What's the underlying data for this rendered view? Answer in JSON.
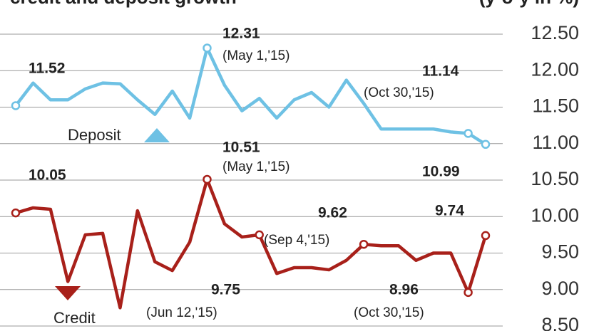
{
  "chart_data": {
    "type": "line",
    "title": "credit and deposit growth",
    "unit": "(y-o-y in %)",
    "categories": [
      null,
      null,
      null,
      null,
      null,
      null,
      null,
      null,
      null,
      null,
      null,
      null,
      null,
      null,
      null,
      null,
      null,
      null,
      null,
      null,
      null,
      null,
      null,
      null,
      null,
      null,
      null,
      null
    ],
    "series": [
      {
        "name": "Deposit",
        "color": "#6ec1e4",
        "values": [
          11.52,
          11.83,
          11.6,
          11.6,
          11.75,
          11.83,
          11.82,
          11.6,
          11.4,
          11.72,
          11.35,
          12.31,
          11.8,
          11.45,
          11.62,
          11.35,
          11.6,
          11.7,
          11.5,
          11.87,
          11.55,
          11.2,
          11.2,
          11.2,
          11.2,
          11.16,
          11.14,
          10.99
        ],
        "value_labels": [
          "11.52",
          null,
          null,
          null,
          null,
          null,
          null,
          null,
          null,
          null,
          null,
          "12.31",
          null,
          null,
          null,
          null,
          null,
          null,
          null,
          null,
          null,
          null,
          null,
          null,
          null,
          null,
          "11.14",
          "10.99"
        ],
        "annotations": [
          "(May 1,'15)",
          "(Oct 30,'15)"
        ]
      },
      {
        "name": "Credit",
        "color": "#a8201a",
        "values": [
          10.05,
          10.12,
          10.1,
          9.11,
          9.75,
          9.77,
          8.75,
          10.08,
          9.38,
          9.26,
          9.65,
          10.51,
          9.9,
          9.72,
          9.75,
          9.22,
          9.3,
          9.3,
          9.27,
          9.4,
          9.62,
          9.6,
          9.6,
          9.4,
          9.5,
          9.5,
          8.96,
          9.74
        ],
        "value_labels": [
          "10.05",
          null,
          null,
          null,
          null,
          null,
          null,
          null,
          null,
          null,
          null,
          "10.51",
          null,
          null,
          "9.75",
          null,
          null,
          null,
          null,
          null,
          "9.62",
          null,
          null,
          null,
          null,
          null,
          "8.96",
          "9.74"
        ],
        "annotations": [
          "(May 1,'15)",
          "(Sep 4,'15)",
          "(Jun 12,'15)",
          "(Oct 30,'15)"
        ]
      }
    ],
    "ylim": [
      8.5,
      12.5
    ],
    "yticks": [
      {
        "value": 8.5,
        "label": "8.50"
      },
      {
        "value": 9,
        "label": "9.00"
      },
      {
        "value": 9.5,
        "label": "9.50"
      },
      {
        "value": 10,
        "label": "10.00"
      },
      {
        "value": 10.5,
        "label": "10.50"
      },
      {
        "value": 11,
        "label": "11.00"
      },
      {
        "value": 11.5,
        "label": "11.50"
      },
      {
        "value": 12,
        "label": "12.00"
      },
      {
        "value": 12.5,
        "label": "12.50"
      }
    ],
    "grid": true
  }
}
